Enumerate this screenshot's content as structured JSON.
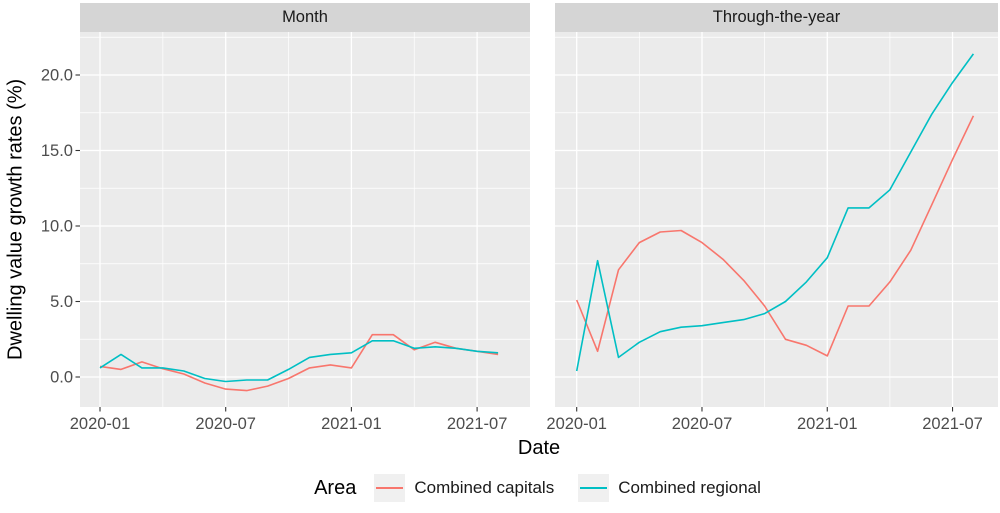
{
  "y_axis": {
    "title": "Dwelling value growth rates (%)",
    "tick_labels": [
      "0.0",
      "5.0",
      "10.0",
      "15.0",
      "20.0"
    ],
    "tick_values": [
      0,
      5,
      10,
      15,
      20
    ],
    "minor_values": [
      2.5,
      7.5,
      12.5,
      17.5,
      22.5
    ]
  },
  "x_axis": {
    "title": "Date",
    "tick_labels": [
      "2020-01",
      "2020-07",
      "2021-01",
      "2021-07"
    ],
    "tick_month_indices": [
      0,
      6,
      12,
      18
    ],
    "minor_month_indices": [
      3,
      9,
      15
    ]
  },
  "legend": {
    "title": "Area",
    "items": [
      {
        "label": "Combined capitals",
        "color": "#F8766D"
      },
      {
        "label": "Combined regional",
        "color": "#00BFC4"
      }
    ]
  },
  "style": {
    "panel_bg": "#EBEBEB",
    "grid_color": "#FFFFFF",
    "tick_mark_color": "#333333",
    "tick_label_color": "#4d4d4d"
  },
  "chart_data": [
    {
      "type": "line",
      "facet": "Month",
      "xlabel": "Date",
      "ylabel": "Dwelling value growth rates (%)",
      "ylim": [
        -2.1,
        22.8
      ],
      "grid": true,
      "x": [
        "2020-01",
        "2020-02",
        "2020-03",
        "2020-04",
        "2020-05",
        "2020-06",
        "2020-07",
        "2020-08",
        "2020-09",
        "2020-10",
        "2020-11",
        "2020-12",
        "2021-01",
        "2021-02",
        "2021-03",
        "2021-04",
        "2021-05",
        "2021-06",
        "2021-07",
        "2021-08"
      ],
      "series": [
        {
          "name": "Combined capitals",
          "color": "#F8766D",
          "values": [
            0.7,
            0.5,
            1.0,
            0.55,
            0.2,
            -0.4,
            -0.8,
            -0.9,
            -0.6,
            -0.1,
            0.6,
            0.8,
            0.6,
            2.8,
            2.8,
            1.8,
            2.3,
            1.9,
            1.7,
            1.5
          ]
        },
        {
          "name": "Combined regional",
          "color": "#00BFC4",
          "values": [
            0.6,
            1.5,
            0.6,
            0.6,
            0.4,
            -0.1,
            -0.3,
            -0.2,
            -0.2,
            0.5,
            1.3,
            1.5,
            1.6,
            2.4,
            2.4,
            1.9,
            2.0,
            1.9,
            1.7,
            1.6
          ]
        }
      ]
    },
    {
      "type": "line",
      "facet": "Through-the-year",
      "xlabel": "Date",
      "ylabel": "Dwelling value growth rates (%)",
      "ylim": [
        -2.1,
        22.8
      ],
      "grid": true,
      "x": [
        "2020-01",
        "2020-02",
        "2020-03",
        "2020-04",
        "2020-05",
        "2020-06",
        "2020-07",
        "2020-08",
        "2020-09",
        "2020-10",
        "2020-11",
        "2020-12",
        "2021-01",
        "2021-02",
        "2021-03",
        "2021-04",
        "2021-05",
        "2021-06",
        "2021-07",
        "2021-08"
      ],
      "series": [
        {
          "name": "Combined capitals",
          "color": "#F8766D",
          "values": [
            5.1,
            1.7,
            7.1,
            8.9,
            9.6,
            9.7,
            8.9,
            7.8,
            6.4,
            4.7,
            2.5,
            2.1,
            1.4,
            4.7,
            4.7,
            6.3,
            8.4,
            11.4,
            14.4,
            17.3
          ]
        },
        {
          "name": "Combined regional",
          "color": "#00BFC4",
          "values": [
            0.4,
            7.7,
            1.3,
            2.3,
            3.0,
            3.3,
            3.4,
            3.6,
            3.8,
            4.2,
            5.0,
            6.3,
            7.9,
            11.2,
            11.2,
            12.4,
            14.9,
            17.4,
            19.5,
            21.4
          ]
        }
      ]
    }
  ]
}
